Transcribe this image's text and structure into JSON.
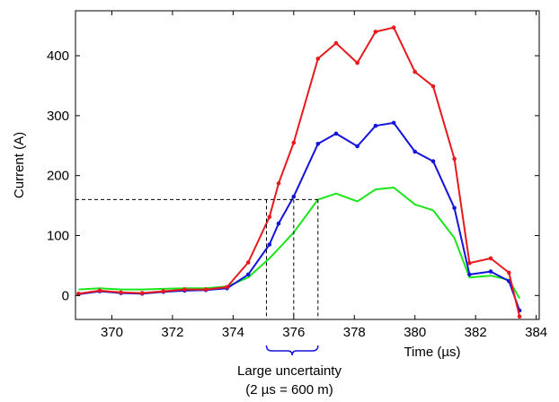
{
  "chart_data": {
    "type": "line",
    "title": "",
    "xlabel": "Time (µs)",
    "ylabel": "Current (A)",
    "xlim": [
      368.8,
      384.1
    ],
    "ylim": [
      -40,
      475
    ],
    "xticks": [
      370,
      372,
      374,
      376,
      378,
      380,
      382,
      384
    ],
    "yticks": [
      0,
      100,
      200,
      300,
      400
    ],
    "grid": false,
    "series": [
      {
        "color": "#e8191c",
        "markers": true,
        "x": [
          368.9,
          369.6,
          370.3,
          371.0,
          371.7,
          372.4,
          373.1,
          373.8,
          374.5,
          375.2,
          375.5,
          376.0,
          376.8,
          377.4,
          378.1,
          378.7,
          379.3,
          380.0,
          380.6,
          381.3,
          381.8,
          382.5,
          383.1,
          383.45
        ],
        "y": [
          3,
          8,
          5,
          4,
          7,
          10,
          10,
          14,
          55,
          131,
          187,
          255,
          395,
          421,
          388,
          440,
          447,
          373,
          349,
          228,
          54,
          62,
          38,
          -35
        ]
      },
      {
        "color": "#1414dc",
        "markers": true,
        "x": [
          368.9,
          369.6,
          370.3,
          371.0,
          371.7,
          372.4,
          373.1,
          373.8,
          374.5,
          375.2,
          375.5,
          376.0,
          376.8,
          377.4,
          378.1,
          378.7,
          379.3,
          380.0,
          380.6,
          381.3,
          381.8,
          382.5,
          383.1,
          383.45
        ],
        "y": [
          2,
          7,
          4,
          3,
          6,
          8,
          9,
          12,
          35,
          85,
          120,
          165,
          253,
          270,
          249,
          283,
          288,
          240,
          224,
          146,
          35,
          40,
          24,
          -25
        ]
      },
      {
        "color": "#19e619",
        "markers": false,
        "x": [
          368.9,
          369.6,
          370.3,
          371.0,
          371.7,
          372.4,
          373.1,
          373.8,
          374.5,
          375.2,
          375.5,
          376.0,
          376.8,
          377.4,
          378.1,
          378.7,
          379.3,
          380.0,
          380.6,
          381.3,
          381.8,
          382.5,
          383.1,
          383.45
        ],
        "y": [
          10,
          12,
          10,
          10,
          11,
          12,
          12,
          15,
          30,
          62,
          78,
          105,
          160,
          170,
          157,
          177,
          180,
          152,
          142,
          96,
          30,
          33,
          26,
          -5
        ]
      }
    ],
    "reference_lines": {
      "horizontal_y": 160,
      "vertical_x": [
        375.1,
        376.0,
        376.8
      ]
    },
    "annotations": {
      "bracket_from_x": 375.1,
      "bracket_to_x": 376.8,
      "line1": "Large uncertainty",
      "line2": "(2 µs = 600 m)"
    }
  }
}
